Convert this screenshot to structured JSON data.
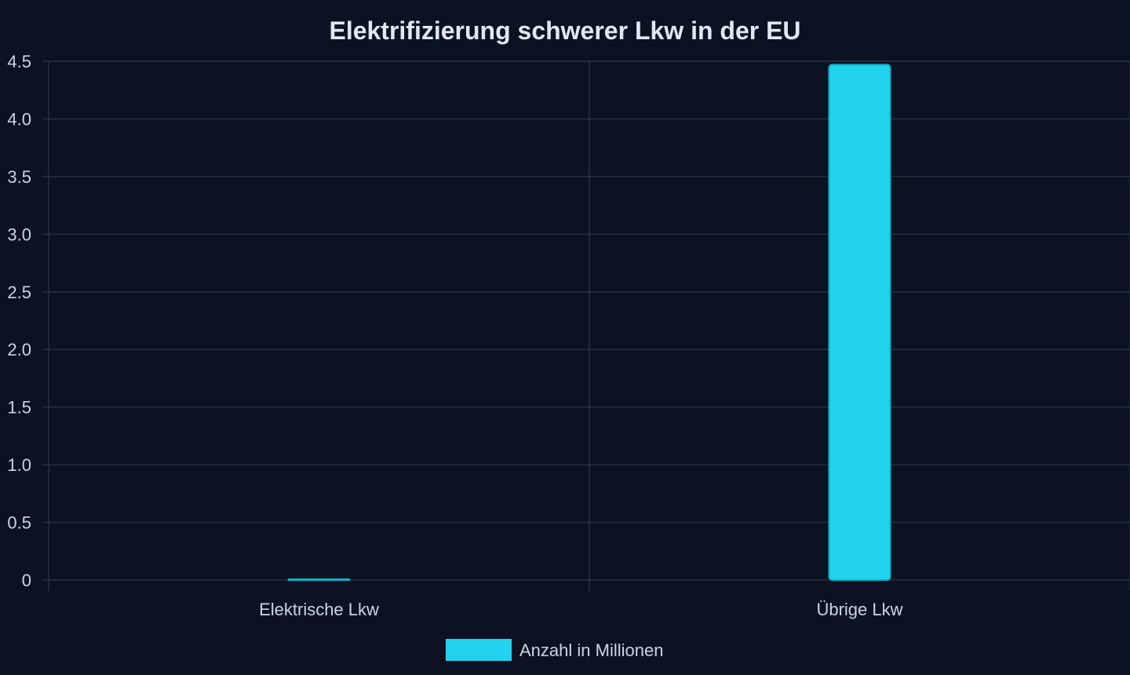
{
  "chart_data": {
    "type": "bar",
    "title": "Elektrifizierung schwerer Lkw in der EU",
    "xlabel": "",
    "ylabel": "",
    "categories": [
      "Elektrische Lkw",
      "Übrige Lkw"
    ],
    "series": [
      {
        "name": "Anzahl in Millionen",
        "values": [
          0.006,
          4.47
        ],
        "color": "#22d3ee"
      }
    ],
    "ylim": [
      0,
      4.5
    ],
    "yticks": [
      0,
      0.5,
      1.0,
      1.5,
      2.0,
      2.5,
      3.0,
      3.5,
      4.0,
      4.5
    ],
    "ytick_labels": [
      "0",
      "0.5",
      "1.0",
      "1.5",
      "2.0",
      "2.5",
      "3.0",
      "3.5",
      "4.0",
      "4.5"
    ],
    "grid": true,
    "legend_position": "bottom"
  },
  "colors": {
    "background": "#0c1222",
    "grid": "#263042",
    "text": "#cbd5e1",
    "title": "#e2e8f0",
    "bar_fill": "#22d3ee",
    "bar_stroke": "#0fb1c9"
  }
}
